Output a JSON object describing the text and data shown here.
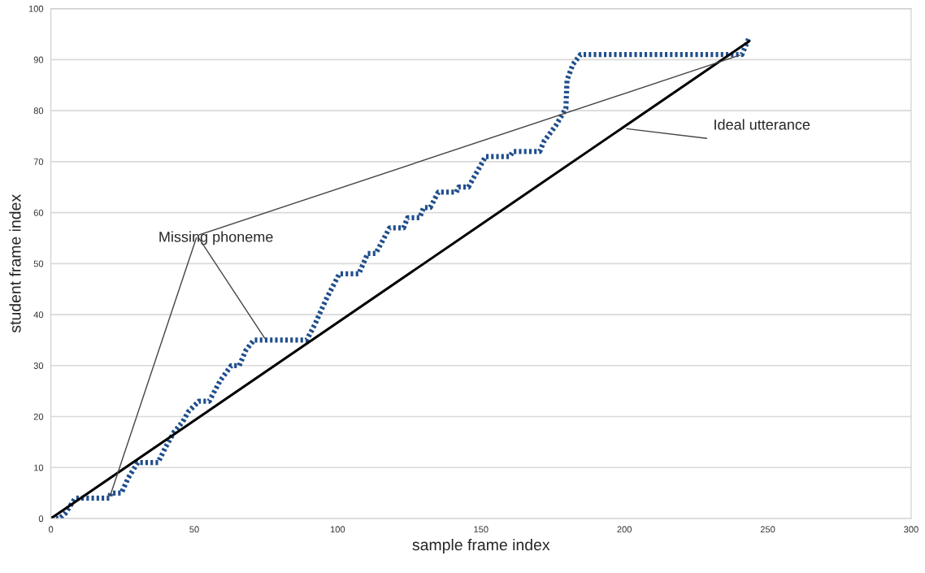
{
  "chart_data": {
    "type": "line",
    "xlabel": "sample frame index",
    "ylabel": "student frame index",
    "xlim": [
      0,
      300
    ],
    "xticks": [
      0,
      50,
      100,
      150,
      200,
      250,
      300
    ],
    "ylim": [
      0,
      100
    ],
    "yticks": [
      0,
      10,
      20,
      30,
      40,
      50,
      60,
      70,
      80,
      90,
      100
    ],
    "grid": "y",
    "series": [
      {
        "color": "#1f4e8c",
        "line_style": "dotted",
        "x": [
          0,
          3,
          5,
          8.5,
          20.4,
          20.9,
          24.6,
          27,
          30.3,
          37.4,
          40,
          43,
          46,
          48,
          51.6,
          55.2,
          59,
          62.9,
          65.7,
          68,
          70.8,
          89.2,
          92,
          96,
          100.6,
          107.4,
          110.5,
          113.3,
          118.1,
          123,
          124.4,
          128.6,
          130,
          132.3,
          135.1,
          141.4,
          142.2,
          145.6,
          151.6,
          160,
          161.2,
          170.5,
          172,
          176,
          179.6,
          180,
          182,
          184.7,
          241,
          243.5
        ],
        "values": [
          0,
          0,
          1,
          4,
          4,
          5,
          5,
          8,
          11,
          11,
          14,
          17,
          19,
          21,
          23,
          23,
          27,
          30,
          30,
          33,
          35,
          35,
          38,
          43,
          48,
          48,
          52,
          52,
          57,
          57,
          59,
          59,
          61,
          61,
          64,
          64,
          65,
          65,
          71,
          71,
          72,
          72,
          74,
          77,
          80.4,
          86,
          89,
          91,
          91,
          94.3
        ]
      },
      {
        "color": "#000000",
        "line_style": "solid",
        "x": [
          0,
          243.5
        ],
        "values": [
          0,
          93.6
        ]
      }
    ],
    "annotations": [
      {
        "text": "Missing phoneme",
        "x": 75,
        "y": 35
      },
      {
        "text": "Ideal utterance",
        "x": 200,
        "y": 76.5
      }
    ]
  }
}
